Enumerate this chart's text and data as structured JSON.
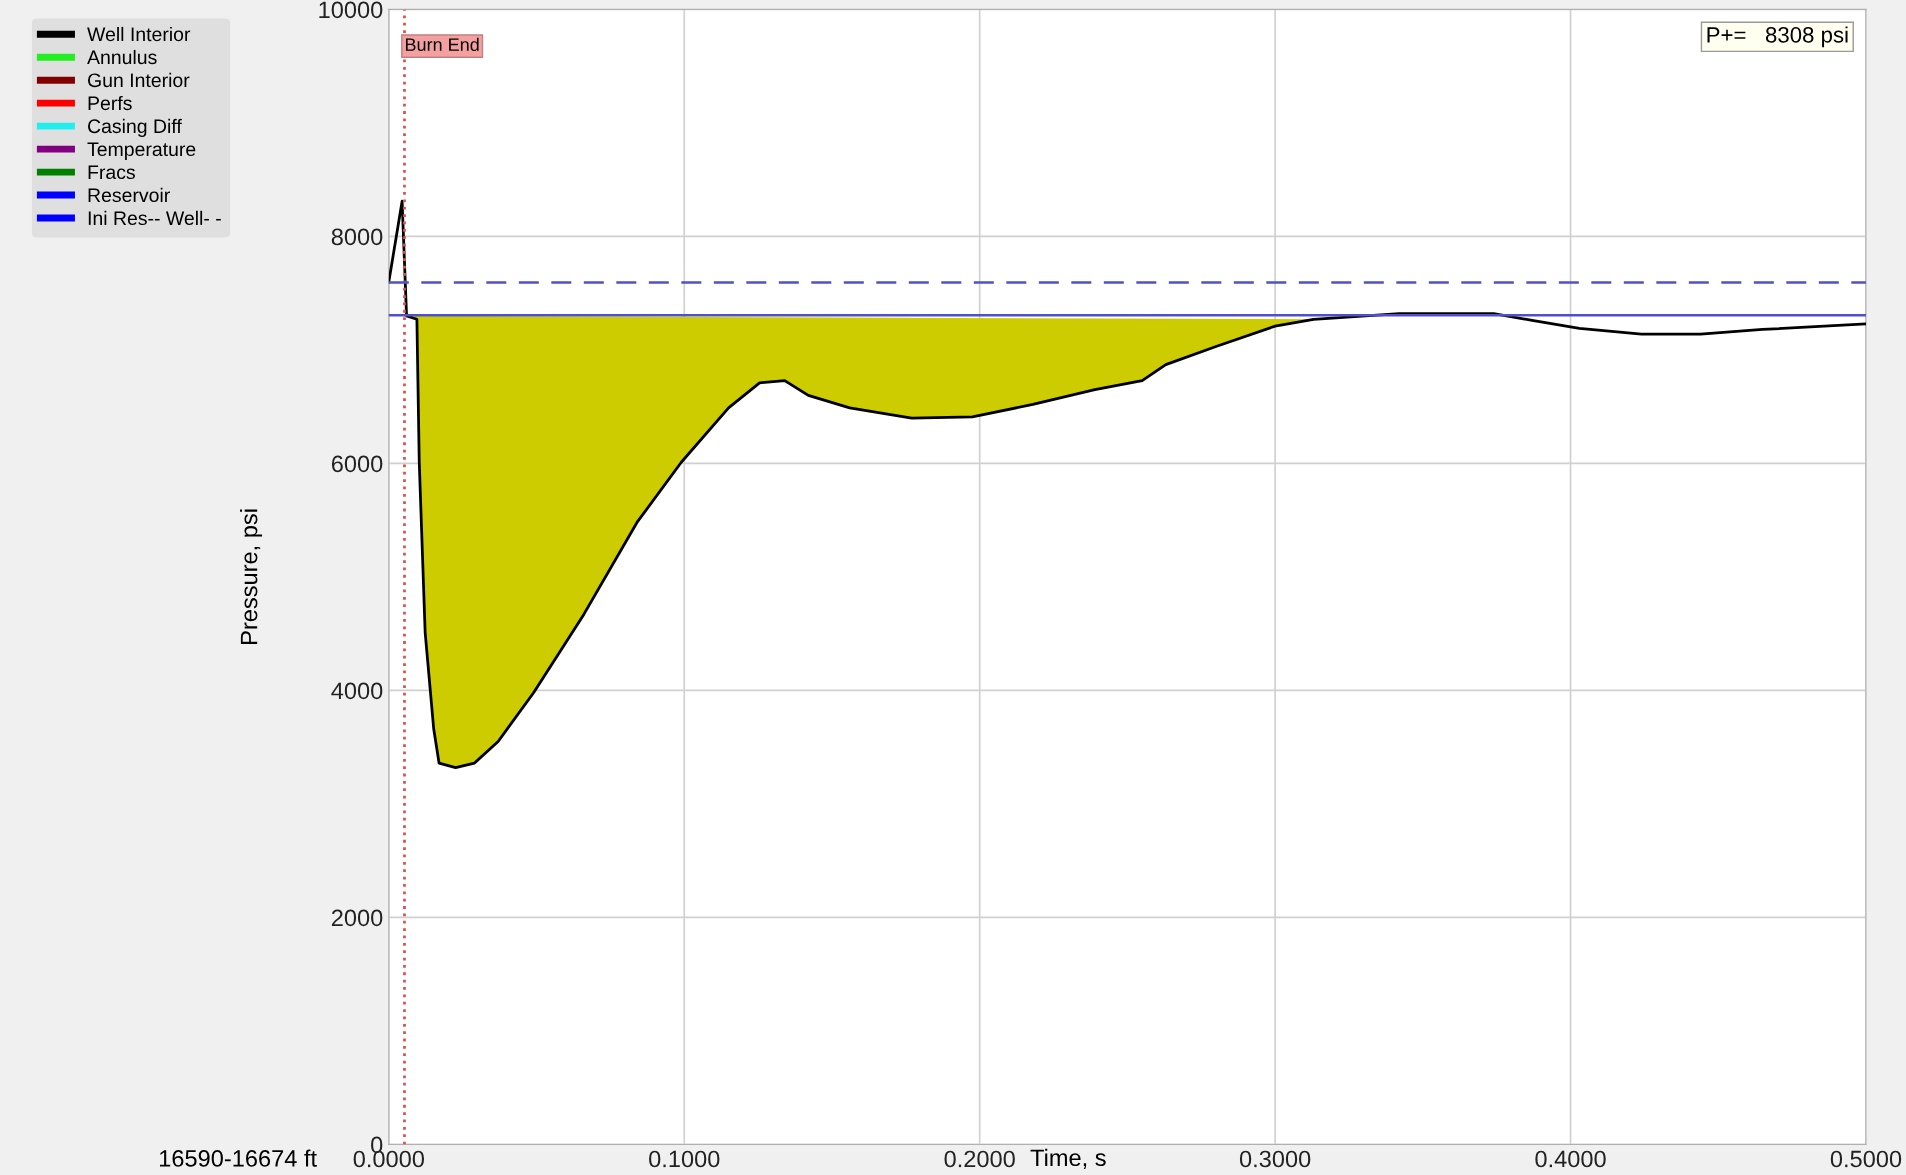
{
  "chart_data": {
    "type": "line",
    "xlabel": "Time, s",
    "ylabel": "Pressure, psi",
    "xlim": [
      0,
      0.5
    ],
    "ylim": [
      0,
      10000
    ],
    "xticks": [
      {
        "value": 0,
        "label": "0.0000"
      },
      {
        "value": 0.1,
        "label": "0.1000"
      },
      {
        "value": 0.2,
        "label": "0.2000"
      },
      {
        "value": 0.3,
        "label": "0.3000"
      },
      {
        "value": 0.4,
        "label": "0.4000"
      },
      {
        "value": 0.5,
        "label": "0.5000"
      }
    ],
    "yticks": [
      0,
      2000,
      4000,
      6000,
      8000,
      10000
    ],
    "grid": true,
    "legend": "top left",
    "series": [
      {
        "name": "Well Interior",
        "color": "#000000",
        "x": [
          0,
          0.0045,
          0.006,
          0.0095,
          0.0103,
          0.0123,
          0.0152,
          0.017,
          0.0226,
          0.029,
          0.037,
          0.049,
          0.066,
          0.084,
          0.099,
          0.115,
          0.1255,
          0.134,
          0.142,
          0.156,
          0.177,
          0.1975,
          0.218,
          0.239,
          0.255,
          0.263,
          0.28,
          0.3,
          0.313,
          0.342,
          0.374,
          0.387,
          0.403,
          0.424,
          0.444,
          0.465,
          0.5
        ],
        "values": [
          7600,
          8310,
          7300,
          7270,
          6010,
          4510,
          3660,
          3360,
          3320,
          3360,
          3550,
          3980,
          4670,
          5480,
          6010,
          6490,
          6710,
          6730,
          6600,
          6490,
          6400,
          6410,
          6520,
          6650,
          6730,
          6870,
          7030,
          7210,
          7270,
          7320,
          7320,
          7260,
          7190,
          7140,
          7140,
          7180,
          7230
        ]
      },
      {
        "type": "area",
        "color": "#cccc00",
        "x": [
          0.006,
          0.0095,
          0.0103,
          0.0123,
          0.0152,
          0.017,
          0.0226,
          0.029,
          0.037,
          0.049,
          0.066,
          0.084,
          0.099,
          0.115,
          0.1255,
          0.134,
          0.142,
          0.156,
          0.177,
          0.1975,
          0.218,
          0.239,
          0.255,
          0.263,
          0.28,
          0.3,
          0.313
        ],
        "values": [
          7300,
          7270,
          6010,
          4510,
          3660,
          3360,
          3320,
          3360,
          3550,
          3980,
          4670,
          5480,
          6010,
          6490,
          6710,
          6730,
          6600,
          6490,
          6400,
          6410,
          6520,
          6650,
          6730,
          6870,
          7030,
          7210,
          7270
        ]
      },
      {
        "name": "Annulus",
        "color": "#22ee22"
      },
      {
        "name": "Gun Interior",
        "color": "#800000"
      },
      {
        "name": "Perfs",
        "color": "#ff0000"
      },
      {
        "name": "Casing Diff",
        "color": "#22eeee"
      },
      {
        "name": "Temperature",
        "color": "#800080"
      },
      {
        "name": "Fracs",
        "color": "#008000"
      },
      {
        "name": "Reservoir",
        "color": "#0000ff"
      },
      {
        "name": "Ini Res-- Well- -",
        "color": "#0000ff"
      }
    ],
    "ref_lines": [
      {
        "axis": "x",
        "value": 0.0053,
        "label": "Burn End",
        "color": "#e05050",
        "line_style": "dotted"
      },
      {
        "axis": "y",
        "value": 7593,
        "color": "#5050cc",
        "line_style": "dashed"
      },
      {
        "axis": "y",
        "value": 7305,
        "color": "#5050cc",
        "line_style": "solid"
      }
    ],
    "annotations": [
      "P+=   8308 psi",
      "16590-16674 ft"
    ]
  }
}
